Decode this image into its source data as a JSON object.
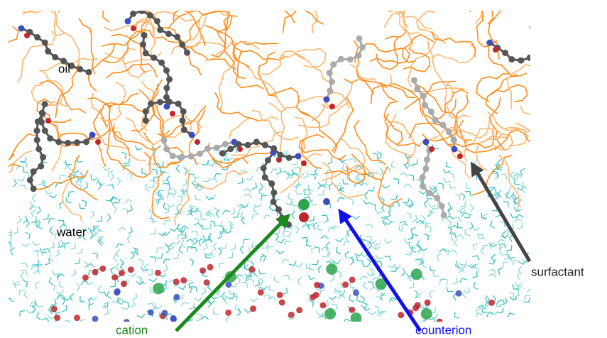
{
  "annotations": {
    "oil": "oil",
    "water": "water",
    "surfactant": "surfactant",
    "cation": "cation",
    "counterion": "counterion"
  }
}
